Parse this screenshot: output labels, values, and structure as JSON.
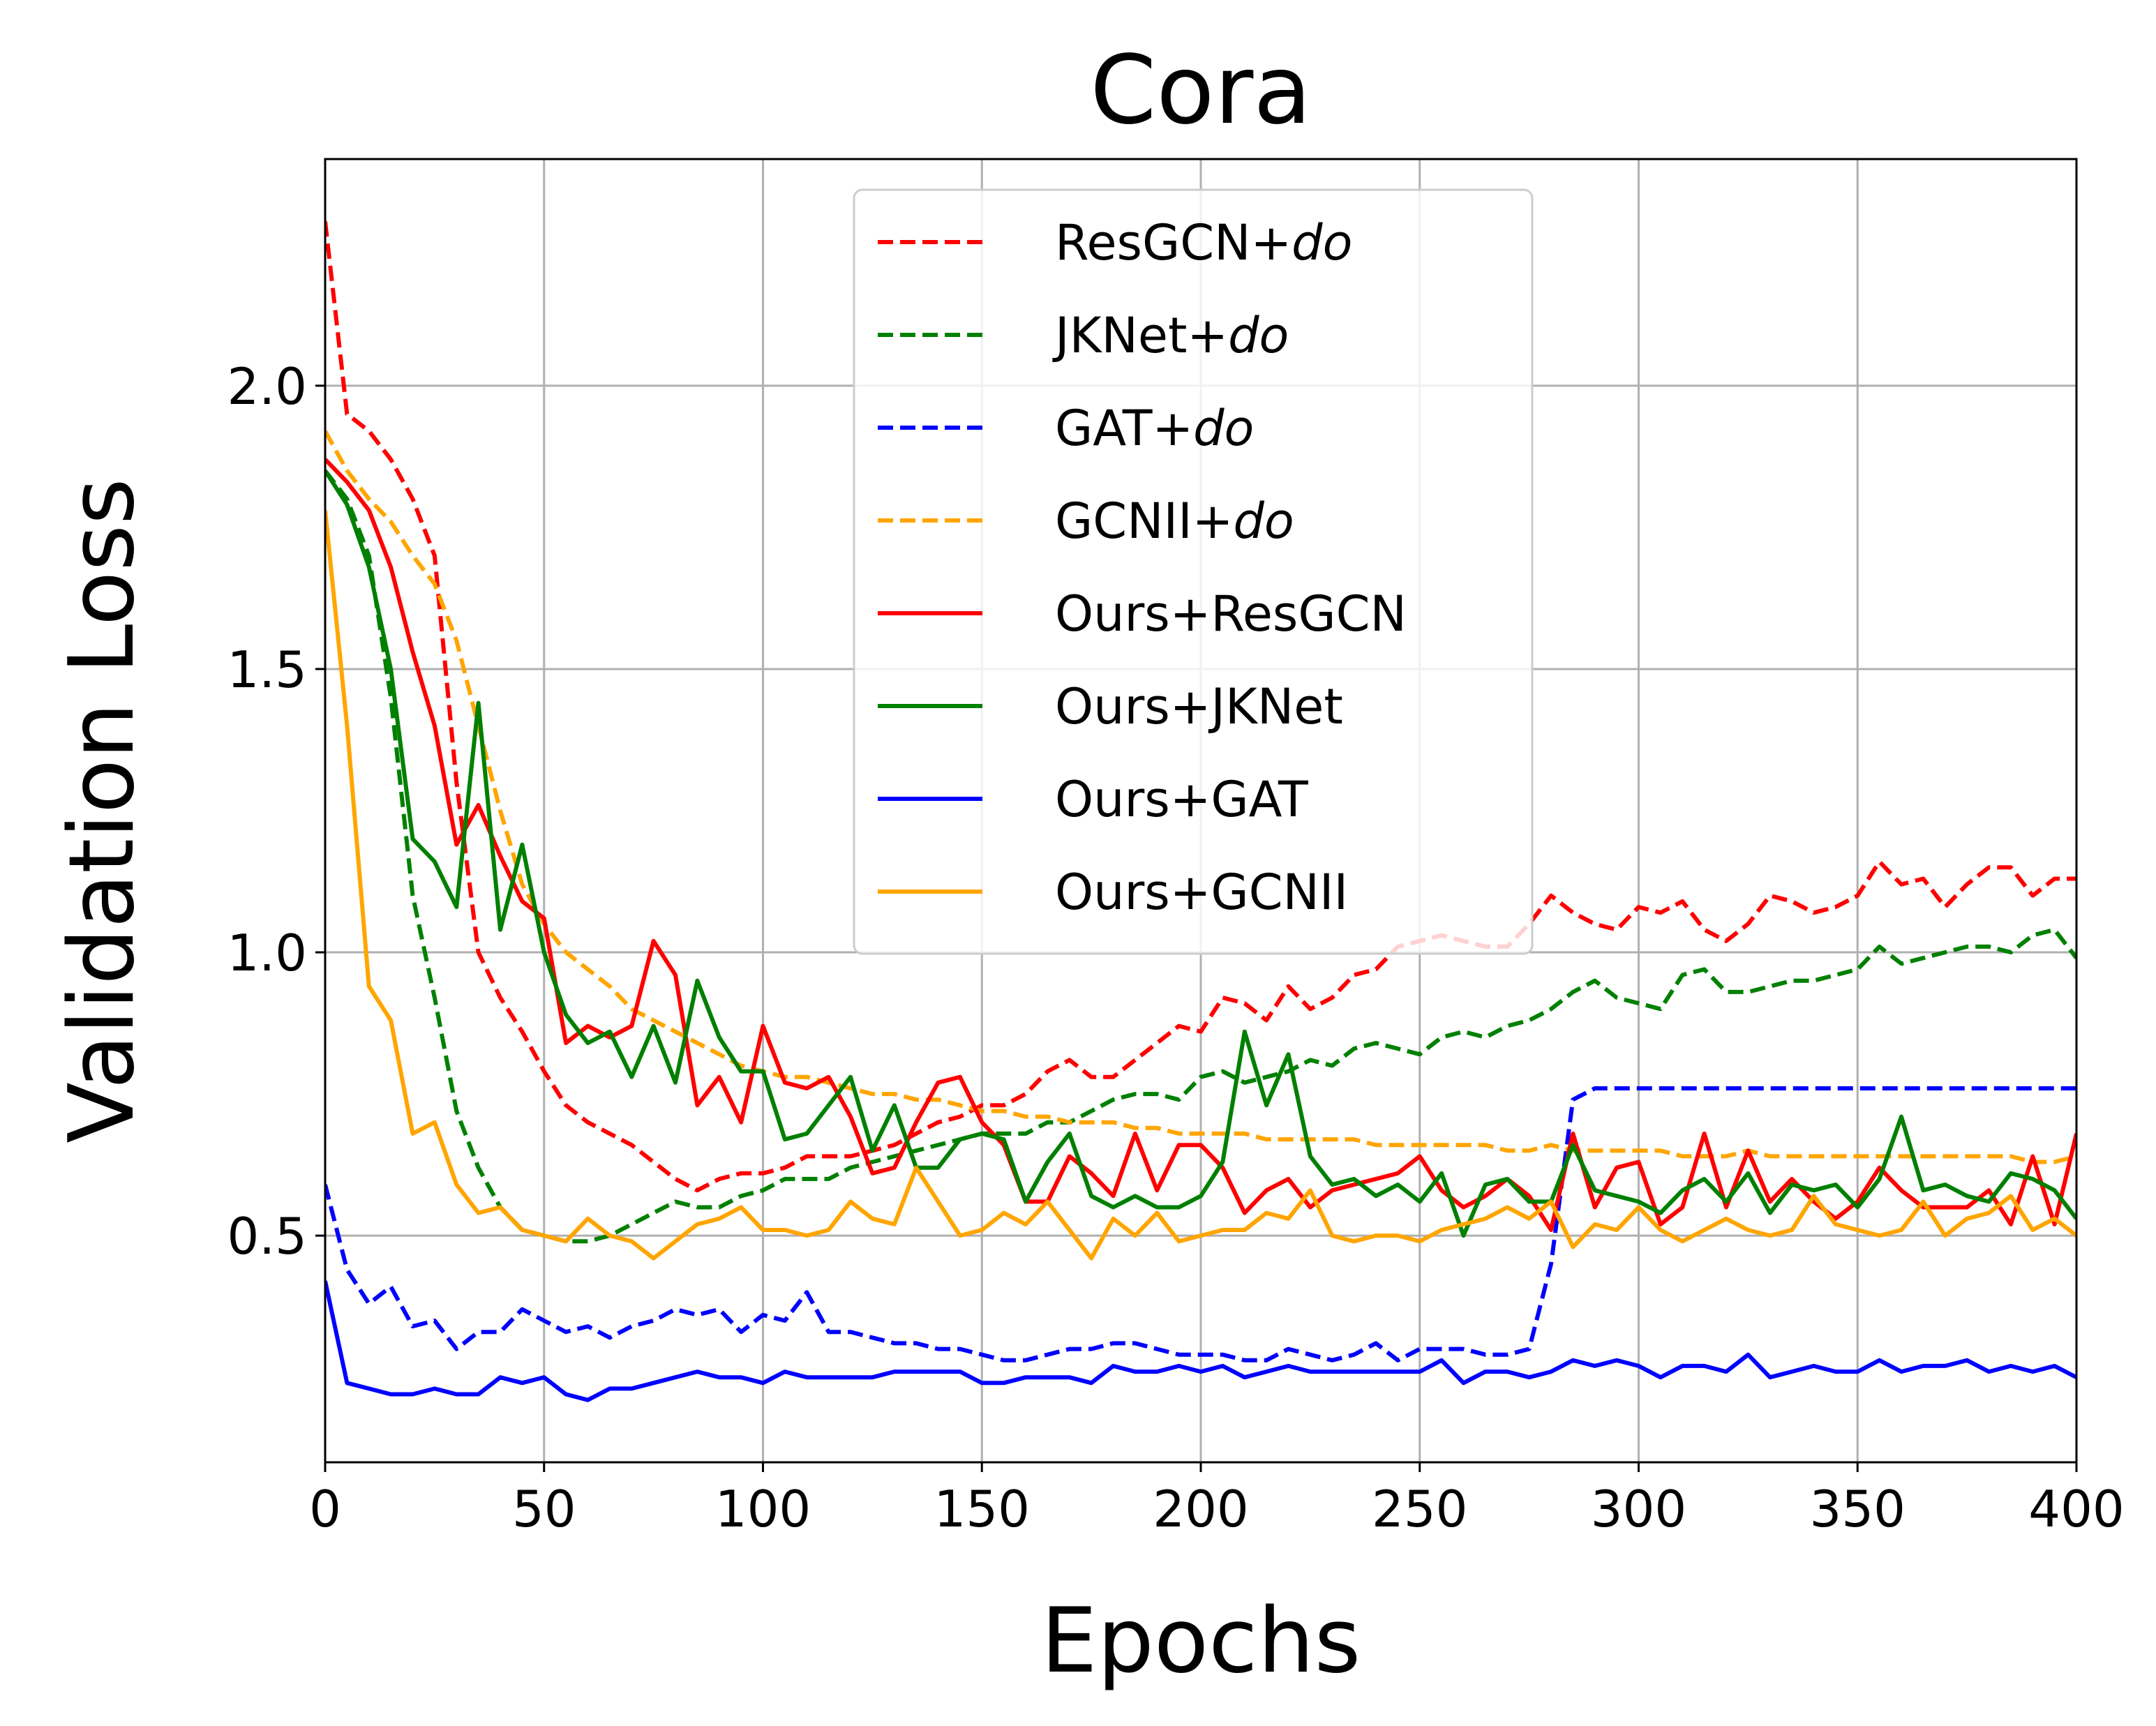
{
  "chart_data": {
    "type": "line",
    "title": "Cora",
    "xlabel": "Epochs",
    "ylabel": "Validation Loss",
    "xlim": [
      0,
      400
    ],
    "ylim": [
      0.1,
      2.4
    ],
    "xticks": [
      0,
      50,
      100,
      150,
      200,
      250,
      300,
      350,
      400
    ],
    "yticks": [
      0.5,
      1.0,
      1.5,
      2.0
    ],
    "xtick_labels": [
      "0",
      "50",
      "100",
      "150",
      "200",
      "250",
      "300",
      "350",
      "400"
    ],
    "ytick_labels": [
      "0.5",
      "1.0",
      "1.5",
      "2.0"
    ],
    "grid": true,
    "legend_position": "top-center",
    "x": [
      0,
      5,
      10,
      15,
      20,
      25,
      30,
      35,
      40,
      45,
      50,
      55,
      60,
      65,
      70,
      75,
      80,
      85,
      90,
      95,
      100,
      105,
      110,
      115,
      120,
      125,
      130,
      135,
      140,
      145,
      150,
      155,
      160,
      165,
      170,
      175,
      180,
      185,
      190,
      195,
      200,
      205,
      210,
      215,
      220,
      225,
      230,
      235,
      240,
      245,
      250,
      255,
      260,
      265,
      270,
      275,
      280,
      285,
      290,
      295,
      300,
      305,
      310,
      315,
      320,
      325,
      330,
      335,
      340,
      345,
      350,
      355,
      360,
      365,
      370,
      375,
      380,
      385,
      390,
      395,
      400
    ],
    "series": [
      {
        "name": "ResGCN+",
        "name_suffix": "do",
        "color": "#ff0000",
        "style": "dashed",
        "values": [
          2.29,
          1.95,
          1.92,
          1.87,
          1.8,
          1.7,
          1.3,
          1.0,
          0.92,
          0.86,
          0.79,
          0.73,
          0.7,
          0.68,
          0.66,
          0.63,
          0.6,
          0.58,
          0.6,
          0.61,
          0.61,
          0.62,
          0.64,
          0.64,
          0.64,
          0.65,
          0.66,
          0.68,
          0.7,
          0.71,
          0.73,
          0.73,
          0.75,
          0.79,
          0.81,
          0.78,
          0.78,
          0.81,
          0.84,
          0.87,
          0.86,
          0.92,
          0.91,
          0.88,
          0.94,
          0.9,
          0.92,
          0.96,
          0.97,
          1.01,
          1.02,
          1.03,
          1.02,
          1.01,
          1.01,
          1.05,
          1.1,
          1.07,
          1.05,
          1.04,
          1.08,
          1.07,
          1.09,
          1.04,
          1.02,
          1.05,
          1.1,
          1.09,
          1.07,
          1.08,
          1.1,
          1.16,
          1.12,
          1.13,
          1.08,
          1.12,
          1.15,
          1.15,
          1.1,
          1.13,
          1.13
        ]
      },
      {
        "name": "JKNet+",
        "name_suffix": "do",
        "color": "#008000",
        "style": "dashed",
        "values": [
          1.85,
          1.8,
          1.7,
          1.45,
          1.1,
          0.92,
          0.72,
          0.62,
          0.55,
          0.51,
          0.5,
          0.49,
          0.49,
          0.5,
          0.52,
          0.54,
          0.56,
          0.55,
          0.55,
          0.57,
          0.58,
          0.6,
          0.6,
          0.6,
          0.62,
          0.63,
          0.64,
          0.65,
          0.66,
          0.67,
          0.68,
          0.68,
          0.68,
          0.7,
          0.7,
          0.72,
          0.74,
          0.75,
          0.75,
          0.74,
          0.78,
          0.79,
          0.77,
          0.78,
          0.79,
          0.81,
          0.8,
          0.83,
          0.84,
          0.83,
          0.82,
          0.85,
          0.86,
          0.85,
          0.87,
          0.88,
          0.9,
          0.93,
          0.95,
          0.92,
          0.91,
          0.9,
          0.96,
          0.97,
          0.93,
          0.93,
          0.94,
          0.95,
          0.95,
          0.96,
          0.97,
          1.01,
          0.98,
          0.99,
          1.0,
          1.01,
          1.01,
          1.0,
          1.03,
          1.04,
          0.99
        ]
      },
      {
        "name": "GAT+",
        "name_suffix": "do",
        "color": "#0000ff",
        "style": "dashed",
        "values": [
          0.59,
          0.44,
          0.38,
          0.41,
          0.34,
          0.35,
          0.3,
          0.33,
          0.33,
          0.37,
          0.35,
          0.33,
          0.34,
          0.32,
          0.34,
          0.35,
          0.37,
          0.36,
          0.37,
          0.33,
          0.36,
          0.35,
          0.4,
          0.33,
          0.33,
          0.32,
          0.31,
          0.31,
          0.3,
          0.3,
          0.29,
          0.28,
          0.28,
          0.29,
          0.3,
          0.3,
          0.31,
          0.31,
          0.3,
          0.29,
          0.29,
          0.29,
          0.28,
          0.28,
          0.3,
          0.29,
          0.28,
          0.29,
          0.31,
          0.28,
          0.3,
          0.3,
          0.3,
          0.29,
          0.29,
          0.3,
          0.45,
          0.74,
          0.76,
          0.76,
          0.76,
          0.76,
          0.76,
          0.76,
          0.76,
          0.76,
          0.76,
          0.76,
          0.76,
          0.76,
          0.76,
          0.76,
          0.76,
          0.76,
          0.76,
          0.76,
          0.76,
          0.76,
          0.76,
          0.76,
          0.76
        ]
      },
      {
        "name": "GCNII+",
        "name_suffix": "do",
        "color": "#ffa500",
        "style": "dashed",
        "values": [
          1.92,
          1.85,
          1.8,
          1.76,
          1.7,
          1.65,
          1.55,
          1.4,
          1.25,
          1.12,
          1.05,
          1.0,
          0.97,
          0.94,
          0.9,
          0.88,
          0.86,
          0.84,
          0.82,
          0.8,
          0.79,
          0.78,
          0.78,
          0.77,
          0.76,
          0.75,
          0.75,
          0.74,
          0.74,
          0.73,
          0.72,
          0.72,
          0.71,
          0.71,
          0.7,
          0.7,
          0.7,
          0.69,
          0.69,
          0.68,
          0.68,
          0.68,
          0.68,
          0.67,
          0.67,
          0.67,
          0.67,
          0.67,
          0.66,
          0.66,
          0.66,
          0.66,
          0.66,
          0.66,
          0.65,
          0.65,
          0.66,
          0.65,
          0.65,
          0.65,
          0.65,
          0.65,
          0.64,
          0.64,
          0.64,
          0.65,
          0.64,
          0.64,
          0.64,
          0.64,
          0.64,
          0.64,
          0.64,
          0.64,
          0.64,
          0.64,
          0.64,
          0.64,
          0.63,
          0.63,
          0.64
        ]
      },
      {
        "name": "Ours+ResGCN",
        "color": "#ff0000",
        "style": "solid",
        "values": [
          1.87,
          1.83,
          1.78,
          1.68,
          1.53,
          1.4,
          1.19,
          1.26,
          1.17,
          1.09,
          1.06,
          0.84,
          0.87,
          0.85,
          0.87,
          1.02,
          0.96,
          0.73,
          0.78,
          0.7,
          0.87,
          0.77,
          0.76,
          0.78,
          0.71,
          0.61,
          0.62,
          0.7,
          0.77,
          0.78,
          0.7,
          0.66,
          0.56,
          0.56,
          0.64,
          0.61,
          0.57,
          0.68,
          0.58,
          0.66,
          0.66,
          0.62,
          0.54,
          0.58,
          0.6,
          0.55,
          0.58,
          0.59,
          0.6,
          0.61,
          0.64,
          0.58,
          0.55,
          0.57,
          0.6,
          0.57,
          0.51,
          0.68,
          0.55,
          0.62,
          0.63,
          0.52,
          0.55,
          0.68,
          0.55,
          0.65,
          0.56,
          0.6,
          0.56,
          0.53,
          0.56,
          0.62,
          0.58,
          0.55,
          0.55,
          0.55,
          0.58,
          0.52,
          0.64,
          0.52,
          0.68
        ]
      },
      {
        "name": "Ours+JKNet",
        "color": "#008000",
        "style": "solid",
        "values": [
          1.85,
          1.79,
          1.68,
          1.5,
          1.2,
          1.16,
          1.08,
          1.44,
          1.04,
          1.19,
          1.0,
          0.89,
          0.84,
          0.86,
          0.78,
          0.87,
          0.77,
          0.95,
          0.85,
          0.79,
          0.79,
          0.67,
          0.68,
          0.73,
          0.78,
          0.65,
          0.73,
          0.62,
          0.62,
          0.67,
          0.68,
          0.67,
          0.56,
          0.63,
          0.68,
          0.57,
          0.55,
          0.57,
          0.55,
          0.55,
          0.57,
          0.63,
          0.86,
          0.73,
          0.82,
          0.64,
          0.59,
          0.6,
          0.57,
          0.59,
          0.56,
          0.61,
          0.5,
          0.59,
          0.6,
          0.56,
          0.56,
          0.66,
          0.58,
          0.57,
          0.56,
          0.54,
          0.58,
          0.6,
          0.56,
          0.61,
          0.54,
          0.59,
          0.58,
          0.59,
          0.55,
          0.6,
          0.71,
          0.58,
          0.59,
          0.57,
          0.56,
          0.61,
          0.6,
          0.58,
          0.53
        ]
      },
      {
        "name": "Ours+GAT",
        "color": "#0000ff",
        "style": "solid",
        "values": [
          0.42,
          0.24,
          0.23,
          0.22,
          0.22,
          0.23,
          0.22,
          0.22,
          0.25,
          0.24,
          0.25,
          0.22,
          0.21,
          0.23,
          0.23,
          0.24,
          0.25,
          0.26,
          0.25,
          0.25,
          0.24,
          0.26,
          0.25,
          0.25,
          0.25,
          0.25,
          0.26,
          0.26,
          0.26,
          0.26,
          0.24,
          0.24,
          0.25,
          0.25,
          0.25,
          0.24,
          0.27,
          0.26,
          0.26,
          0.27,
          0.26,
          0.27,
          0.25,
          0.26,
          0.27,
          0.26,
          0.26,
          0.26,
          0.26,
          0.26,
          0.26,
          0.28,
          0.24,
          0.26,
          0.26,
          0.25,
          0.26,
          0.28,
          0.27,
          0.28,
          0.27,
          0.25,
          0.27,
          0.27,
          0.26,
          0.29,
          0.25,
          0.26,
          0.27,
          0.26,
          0.26,
          0.28,
          0.26,
          0.27,
          0.27,
          0.28,
          0.26,
          0.27,
          0.26,
          0.27,
          0.25
        ]
      },
      {
        "name": "Ours+GCNII",
        "color": "#ffa500",
        "style": "solid",
        "values": [
          1.78,
          1.4,
          0.94,
          0.88,
          0.68,
          0.7,
          0.59,
          0.54,
          0.55,
          0.51,
          0.5,
          0.49,
          0.53,
          0.5,
          0.49,
          0.46,
          0.49,
          0.52,
          0.53,
          0.55,
          0.51,
          0.51,
          0.5,
          0.51,
          0.56,
          0.53,
          0.52,
          0.62,
          0.56,
          0.5,
          0.51,
          0.54,
          0.52,
          0.56,
          0.51,
          0.46,
          0.53,
          0.5,
          0.54,
          0.49,
          0.5,
          0.51,
          0.51,
          0.54,
          0.53,
          0.58,
          0.5,
          0.49,
          0.5,
          0.5,
          0.49,
          0.51,
          0.52,
          0.53,
          0.55,
          0.53,
          0.56,
          0.48,
          0.52,
          0.51,
          0.55,
          0.51,
          0.49,
          0.51,
          0.53,
          0.51,
          0.5,
          0.51,
          0.57,
          0.52,
          0.51,
          0.5,
          0.51,
          0.56,
          0.5,
          0.53,
          0.54,
          0.57,
          0.51,
          0.53,
          0.5
        ]
      }
    ]
  }
}
